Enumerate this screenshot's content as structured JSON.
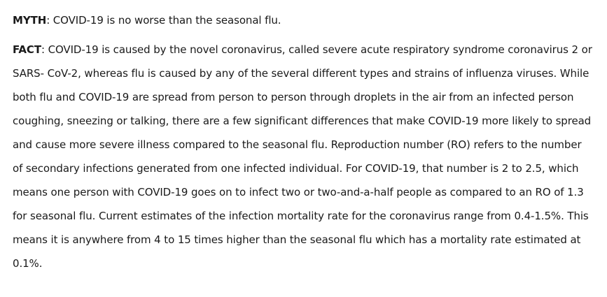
{
  "myth": {
    "label": "MYTH",
    "text": ": COVID-19 is no worse than the seasonal flu."
  },
  "fact": {
    "label": "FACT",
    "text": ": COVID-19 is caused by the novel coronavirus, called severe acute respiratory syndrome coronavirus 2 or SARS- CoV-2, whereas flu is caused by any of the several different types and strains of influenza viruses. While both flu and COVID-19 are spread from person to person through droplets in the air from an infected person coughing, sneezing or talking, there are a few significant differences that make COVID-19 more likely to spread and cause more severe illness compared to the seasonal flu. Reproduction number (RO) refers to the number of secondary infections generated from one infected individual. For COVID-19, that number is 2 to 2.5, which means  one person with COVID-19 goes on to infect two or two-and-a-half people as compared to an RO of 1.3 for seasonal flu. Current estimates of the infection mortality rate for the coronavirus range from 0.4-1.5%. This means it is anywhere from 4 to 15 times higher than the seasonal flu which has a mortality rate estimated at 0.1%."
  }
}
